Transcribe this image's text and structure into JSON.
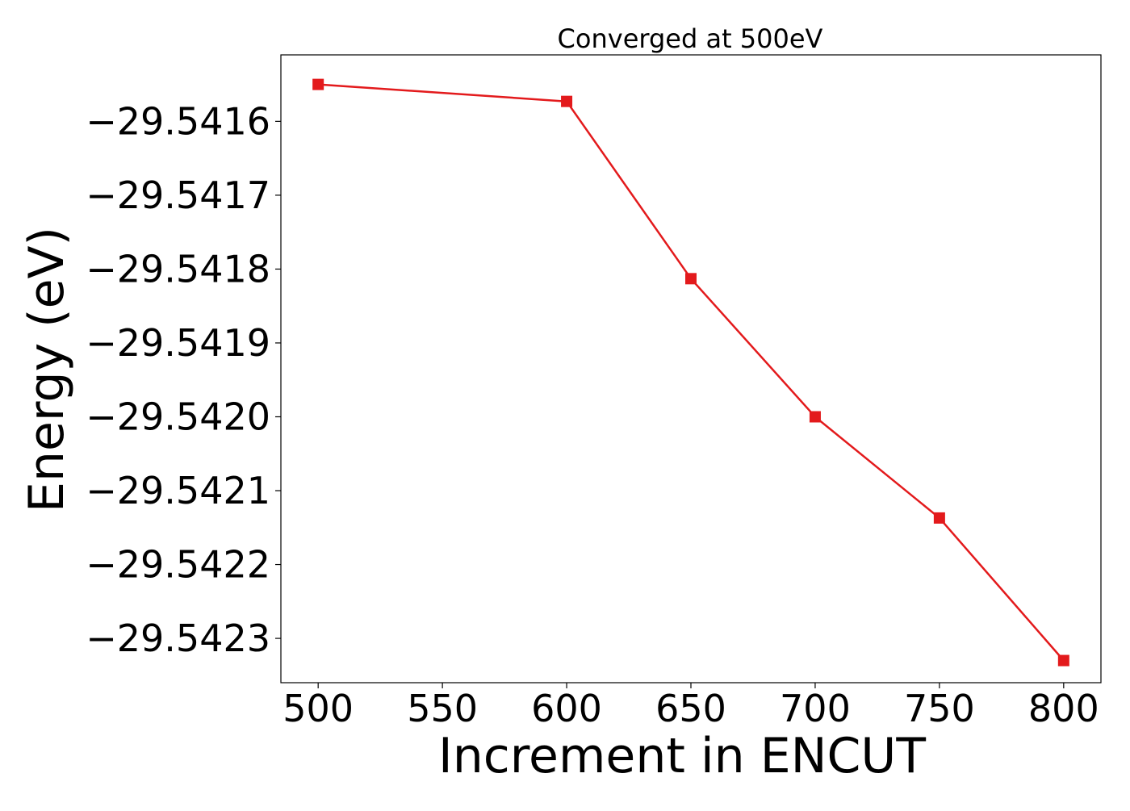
{
  "chart_data": {
    "type": "line",
    "title": "Converged at 500eV",
    "xlabel": "Increment in ENCUT",
    "ylabel": "Energy (eV)",
    "xlim": [
      485,
      815
    ],
    "ylim": [
      -29.54236,
      -29.54151
    ],
    "xticks": [
      500,
      550,
      600,
      650,
      700,
      750,
      800
    ],
    "xtick_labels": [
      "500",
      "550",
      "600",
      "650",
      "700",
      "750",
      "800"
    ],
    "yticks": [
      -29.5416,
      -29.5417,
      -29.5418,
      -29.5419,
      -29.542,
      -29.5421,
      -29.5422,
      -29.5423
    ],
    "ytick_labels": [
      "−29.5416",
      "−29.5417",
      "−29.5418",
      "−29.5419",
      "−29.5420",
      "−29.5421",
      "−29.5422",
      "−29.5423"
    ],
    "grid": false,
    "series": [
      {
        "color": "#e31a1c",
        "marker": "square",
        "x": [
          500,
          600,
          650,
          700,
          750,
          800
        ],
        "y": [
          -29.54155,
          -29.541573,
          -29.541813,
          -29.542,
          -29.542137,
          -29.54233
        ]
      }
    ]
  }
}
